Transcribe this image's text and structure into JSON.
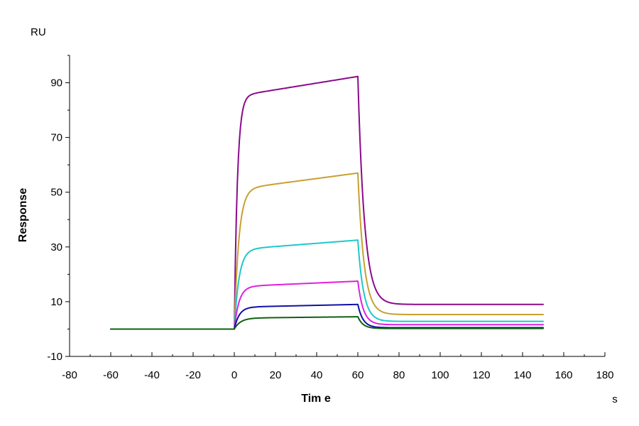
{
  "chart_data": {
    "type": "line",
    "title": "",
    "xlabel": "Tim e",
    "ylabel": "Response",
    "x_unit": "s",
    "y_unit": "RU",
    "xlim": [
      -80,
      180
    ],
    "ylim": [
      -10,
      100
    ],
    "x_ticks": [
      -80,
      -60,
      -40,
      -20,
      0,
      20,
      40,
      60,
      80,
      100,
      120,
      140,
      160,
      180
    ],
    "y_ticks": [
      -10,
      10,
      30,
      50,
      70,
      90
    ],
    "grid": false,
    "legend": "none",
    "series": [
      {
        "color": "#8B0A8B",
        "baseline": 0,
        "peak": 85,
        "drift_end": 92.3,
        "dissoc_plateau": 9.0,
        "tau_assoc": 1.5,
        "tau_dissoc": 3.2
      },
      {
        "color": "#C8A030",
        "baseline": 0,
        "peak": 51,
        "drift_end": 57.0,
        "dissoc_plateau": 5.3,
        "tau_assoc": 2.2,
        "tau_dissoc": 3.0
      },
      {
        "color": "#20C8C8",
        "baseline": 0,
        "peak": 29,
        "drift_end": 32.5,
        "dissoc_plateau": 2.8,
        "tau_assoc": 2.3,
        "tau_dissoc": 2.8
      },
      {
        "color": "#E020E0",
        "baseline": 0,
        "peak": 15.5,
        "drift_end": 17.5,
        "dissoc_plateau": 1.6,
        "tau_assoc": 2.3,
        "tau_dissoc": 2.6
      },
      {
        "color": "#1010A8",
        "baseline": 0,
        "peak": 8.0,
        "drift_end": 9.0,
        "dissoc_plateau": 0.5,
        "tau_assoc": 2.4,
        "tau_dissoc": 2.5
      },
      {
        "color": "#106010",
        "baseline": 0,
        "peak": 4.0,
        "drift_end": 4.5,
        "dissoc_plateau": 0.2,
        "tau_assoc": 3.0,
        "tau_dissoc": 2.5
      }
    ],
    "x_start": -60,
    "injection_start": 0,
    "injection_end": 60,
    "x_end": 150
  }
}
